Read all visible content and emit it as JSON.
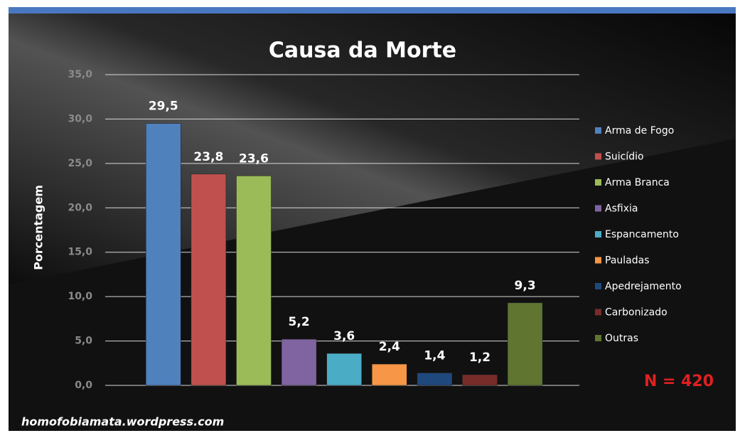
{
  "chart_data": {
    "type": "bar",
    "title": "Causa da Morte",
    "y_label": "Porcentagem",
    "categories": [
      "Arma de Fogo",
      "Suicídio",
      "Arma Branca",
      "Asfixia",
      "Espancamento",
      "Pauladas",
      "Apedrejamento",
      "Carbonizado",
      "Outras"
    ],
    "values": [
      29.5,
      23.8,
      23.6,
      5.2,
      3.6,
      2.4,
      1.4,
      1.2,
      9.3
    ],
    "value_labels": [
      "29,5",
      "23,8",
      "23,6",
      "5,2",
      "3,6",
      "2,4",
      "1,4",
      "1,2",
      "9,3"
    ],
    "colors": [
      "#4f81bd",
      "#c0504d",
      "#9bbb59",
      "#8064a2",
      "#4bacc6",
      "#f79646",
      "#1f497d",
      "#772c2a",
      "#5f7530"
    ],
    "ylim": [
      0,
      35
    ],
    "yticks": [
      {
        "value": 0,
        "label": "0,0"
      },
      {
        "value": 5,
        "label": "5,0"
      },
      {
        "value": 10,
        "label": "10,0"
      },
      {
        "value": 15,
        "label": "15,0"
      },
      {
        "value": 20,
        "label": "20,0"
      },
      {
        "value": 25,
        "label": "25,0"
      },
      {
        "value": 30,
        "label": "30,0"
      },
      {
        "value": 35,
        "label": "35,0"
      }
    ],
    "grid": true,
    "legend": "right",
    "annotation": "N = 420",
    "footer": "homofobiamata.wordpress.com"
  }
}
